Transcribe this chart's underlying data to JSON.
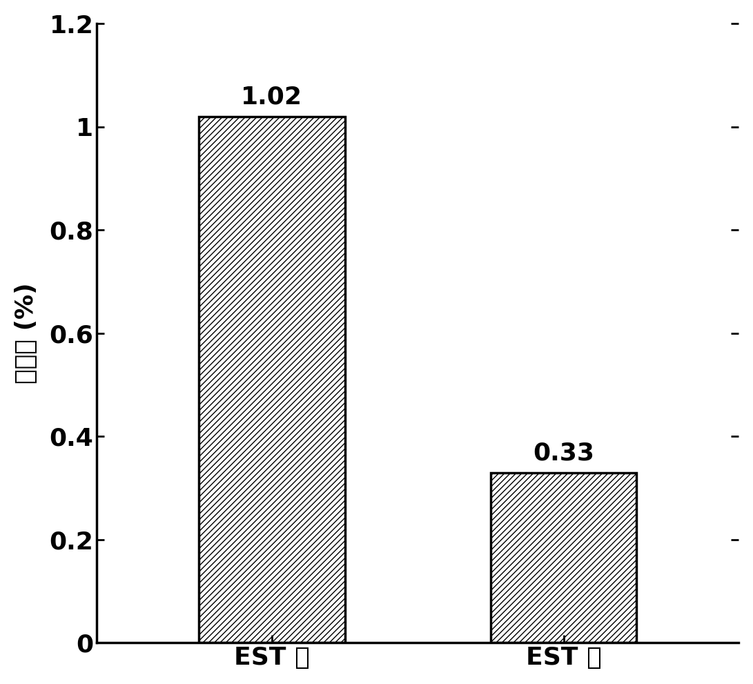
{
  "categories": [
    "EST 前",
    "EST 后"
  ],
  "values": [
    1.02,
    0.33
  ],
  "bar_labels": [
    "1.02",
    "0.33"
  ],
  "ylabel": "孔隙率 (%)",
  "ylim": [
    0,
    1.2
  ],
  "yticks": [
    0,
    0.2,
    0.4,
    0.6,
    0.8,
    1.0,
    1.2
  ],
  "ytick_labels": [
    "0",
    "0.2",
    "0.4",
    "0.6",
    "0.8",
    "1",
    "1.2"
  ],
  "bar_color": "#ffffff",
  "bar_edgecolor": "#000000",
  "hatch": "////",
  "label_fontsize": 26,
  "tick_fontsize": 26,
  "ylabel_fontsize": 26,
  "bar_label_fontsize": 26,
  "background_color": "#ffffff",
  "linewidth": 2.5
}
